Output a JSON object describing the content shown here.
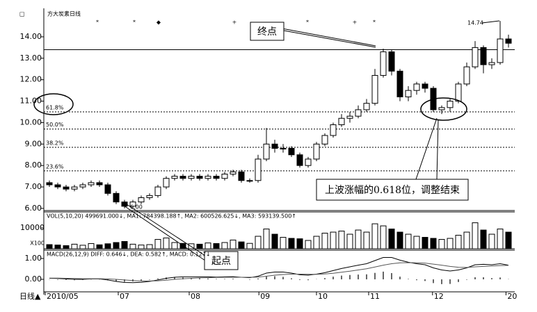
{
  "chart_data": {
    "type": "candlestick",
    "title": "方大炭素日线",
    "corner_label": "□",
    "open": [
      7.2,
      7.1,
      7.0,
      6.9,
      7.0,
      7.1,
      7.2,
      7.1,
      6.7,
      6.3,
      6.1,
      6.3,
      6.5,
      6.6,
      7.0,
      7.4,
      7.5,
      7.4,
      7.5,
      7.4,
      7.5,
      7.4,
      7.6,
      7.7,
      7.3,
      7.3,
      8.3,
      9.0,
      8.8,
      8.8,
      8.5,
      8.0,
      8.3,
      9.0,
      9.4,
      9.9,
      10.2,
      10.3,
      10.6,
      10.9,
      12.2,
      13.3,
      12.4,
      11.2,
      11.5,
      11.8,
      11.6,
      10.6,
      10.7,
      11.0,
      11.8,
      12.6,
      13.5,
      12.7,
      12.8,
      13.9
    ],
    "high": [
      7.3,
      7.2,
      7.1,
      7.1,
      7.2,
      7.3,
      7.3,
      7.2,
      6.8,
      6.4,
      6.4,
      6.6,
      6.7,
      7.1,
      7.5,
      7.6,
      7.6,
      7.6,
      7.6,
      7.6,
      7.6,
      7.7,
      7.8,
      7.8,
      7.4,
      8.5,
      9.75,
      9.2,
      9.0,
      8.9,
      8.6,
      8.4,
      9.1,
      9.5,
      10.0,
      10.4,
      10.5,
      10.8,
      11.1,
      12.5,
      13.45,
      13.4,
      12.5,
      11.7,
      11.9,
      11.9,
      11.7,
      10.8,
      11.1,
      11.9,
      12.8,
      13.8,
      13.6,
      13.0,
      14.74,
      14.1
    ],
    "low": [
      7.0,
      6.9,
      6.8,
      6.8,
      6.9,
      7.0,
      7.0,
      6.6,
      6.2,
      6.0,
      6.0,
      6.2,
      6.4,
      6.5,
      6.9,
      7.3,
      7.3,
      7.3,
      7.3,
      7.3,
      7.3,
      7.3,
      7.5,
      7.2,
      7.2,
      7.2,
      8.2,
      8.6,
      8.6,
      8.4,
      7.9,
      7.9,
      8.2,
      8.9,
      9.3,
      9.8,
      10.0,
      10.2,
      10.5,
      10.8,
      12.1,
      12.2,
      11.0,
      11.0,
      11.3,
      11.4,
      10.5,
      10.4,
      10.5,
      10.9,
      11.7,
      12.5,
      12.3,
      12.5,
      12.7,
      13.5
    ],
    "close": [
      7.1,
      7.0,
      6.9,
      7.0,
      7.1,
      7.2,
      7.1,
      6.7,
      6.3,
      6.1,
      6.3,
      6.5,
      6.6,
      7.0,
      7.4,
      7.5,
      7.4,
      7.5,
      7.4,
      7.5,
      7.4,
      7.6,
      7.7,
      7.3,
      7.3,
      8.3,
      9.0,
      8.8,
      8.8,
      8.5,
      8.0,
      8.3,
      9.0,
      9.4,
      9.9,
      10.2,
      10.3,
      10.6,
      10.9,
      12.2,
      13.3,
      12.4,
      11.2,
      11.5,
      11.8,
      11.6,
      10.6,
      10.7,
      11.0,
      11.8,
      12.6,
      13.5,
      12.7,
      12.8,
      13.9,
      13.7
    ],
    "ylim": [
      5.9,
      15.23
    ],
    "yticks": [
      {
        "value": 14,
        "label": "14.00"
      },
      {
        "value": 13,
        "label": "13.00"
      },
      {
        "value": 12,
        "label": "12.00"
      },
      {
        "value": 11,
        "label": "11.00"
      },
      {
        "value": 10,
        "label": "10.00"
      },
      {
        "value": 9,
        "label": "9.00"
      },
      {
        "value": 8,
        "label": "8.00"
      },
      {
        "value": 7,
        "label": "7.00"
      },
      {
        "value": 6,
        "label": "6.00"
      }
    ],
    "xticks": [
      {
        "value": 0,
        "label": "2010/05"
      },
      {
        "value": 8.75,
        "label": "07"
      },
      {
        "value": 17.25,
        "label": "08"
      },
      {
        "value": 25.6,
        "label": "09"
      },
      {
        "value": 32.5,
        "label": "10"
      },
      {
        "value": 38.75,
        "label": "11"
      },
      {
        "value": 46.4,
        "label": "12"
      },
      {
        "value": 55.2,
        "label": "20"
      }
    ],
    "x_axis_label": "日线▲",
    "levels": [
      {
        "name": "61.8%",
        "price": 10.5
      },
      {
        "name": "50.0%",
        "price": 9.7
      },
      {
        "name": "38.2%",
        "price": 8.85
      },
      {
        "name": "23.6%",
        "price": 7.75
      }
    ],
    "high_line": 13.4,
    "markers": [
      "*",
      "*",
      "◆",
      "+",
      "*",
      "+",
      "*"
    ],
    "high_label": {
      "value": 14.74,
      "label": "14.74"
    },
    "low_label": {
      "value": 6.0,
      "label": "6.00"
    },
    "annotations": [
      "终点",
      "起点",
      "上波涨幅的0.618位，调整结束"
    ],
    "volume": {
      "label": "VOL(5,10,20) 499691.000↓, MA1: 784398.188↑, MA2: 600526.625↓, MA3: 593139.500↑",
      "unit": "X100",
      "values": [
        2000,
        1800,
        1500,
        2200,
        1700,
        2500,
        1900,
        2400,
        3000,
        3500,
        2200,
        1800,
        2000,
        4500,
        5200,
        3000,
        2600,
        2400,
        2200,
        2800,
        2500,
        3000,
        4200,
        3300,
        2600,
        6000,
        9500,
        7000,
        5500,
        5000,
        4800,
        4000,
        6000,
        7500,
        8000,
        8500,
        7000,
        9000,
        8000,
        12000,
        11000,
        9500,
        8000,
        7000,
        6000,
        5500,
        5000,
        4500,
        5000,
        6500,
        8000,
        12500,
        9000,
        7000,
        9500,
        8000
      ],
      "ylim": [
        0,
        17700
      ],
      "yticks": [
        10000
      ]
    },
    "macd": {
      "label": "MACD(26,12,9) DIFF: 0.646↓, DEA: 0.582↑, MACD: 0.127↓",
      "diff": [
        0.05,
        0.04,
        0.02,
        0.0,
        0.0,
        0.02,
        0.02,
        -0.03,
        -0.1,
        -0.15,
        -0.16,
        -0.14,
        -0.1,
        -0.03,
        0.05,
        0.1,
        0.12,
        0.12,
        0.12,
        0.12,
        0.11,
        0.12,
        0.13,
        0.1,
        0.08,
        0.15,
        0.3,
        0.35,
        0.35,
        0.3,
        0.22,
        0.2,
        0.25,
        0.32,
        0.42,
        0.52,
        0.6,
        0.68,
        0.75,
        0.9,
        1.05,
        1.05,
        0.92,
        0.82,
        0.75,
        0.7,
        0.55,
        0.45,
        0.4,
        0.45,
        0.55,
        0.7,
        0.72,
        0.7,
        0.75,
        0.68
      ],
      "dea": [
        0.06,
        0.06,
        0.05,
        0.04,
        0.03,
        0.03,
        0.03,
        0.02,
        0.0,
        -0.03,
        -0.06,
        -0.08,
        -0.08,
        -0.07,
        -0.04,
        0.0,
        0.03,
        0.05,
        0.07,
        0.08,
        0.09,
        0.1,
        0.1,
        0.1,
        0.1,
        0.11,
        0.15,
        0.2,
        0.23,
        0.25,
        0.25,
        0.24,
        0.24,
        0.26,
        0.29,
        0.34,
        0.39,
        0.45,
        0.51,
        0.59,
        0.68,
        0.75,
        0.79,
        0.8,
        0.79,
        0.78,
        0.73,
        0.68,
        0.62,
        0.58,
        0.57,
        0.6,
        0.62,
        0.64,
        0.66,
        0.67
      ],
      "hist": [
        -0.01,
        -0.02,
        -0.03,
        -0.04,
        -0.03,
        -0.01,
        -0.01,
        -0.05,
        -0.1,
        -0.12,
        -0.1,
        -0.06,
        -0.02,
        0.04,
        0.09,
        0.1,
        0.09,
        0.07,
        0.05,
        0.04,
        0.02,
        0.02,
        0.03,
        0.0,
        -0.02,
        0.04,
        0.15,
        0.15,
        0.12,
        0.05,
        -0.03,
        -0.04,
        0.01,
        0.06,
        0.13,
        0.18,
        0.21,
        0.23,
        0.24,
        0.31,
        0.37,
        0.3,
        0.13,
        0.02,
        -0.04,
        -0.08,
        -0.18,
        -0.23,
        -0.22,
        -0.13,
        -0.02,
        0.1,
        0.1,
        0.06,
        0.09,
        0.01
      ],
      "ylim": [
        -0.6,
        1.4
      ],
      "yticks": [
        {
          "value": 1,
          "label": "1.00"
        },
        {
          "value": 0,
          "label": "0.00"
        }
      ]
    }
  }
}
